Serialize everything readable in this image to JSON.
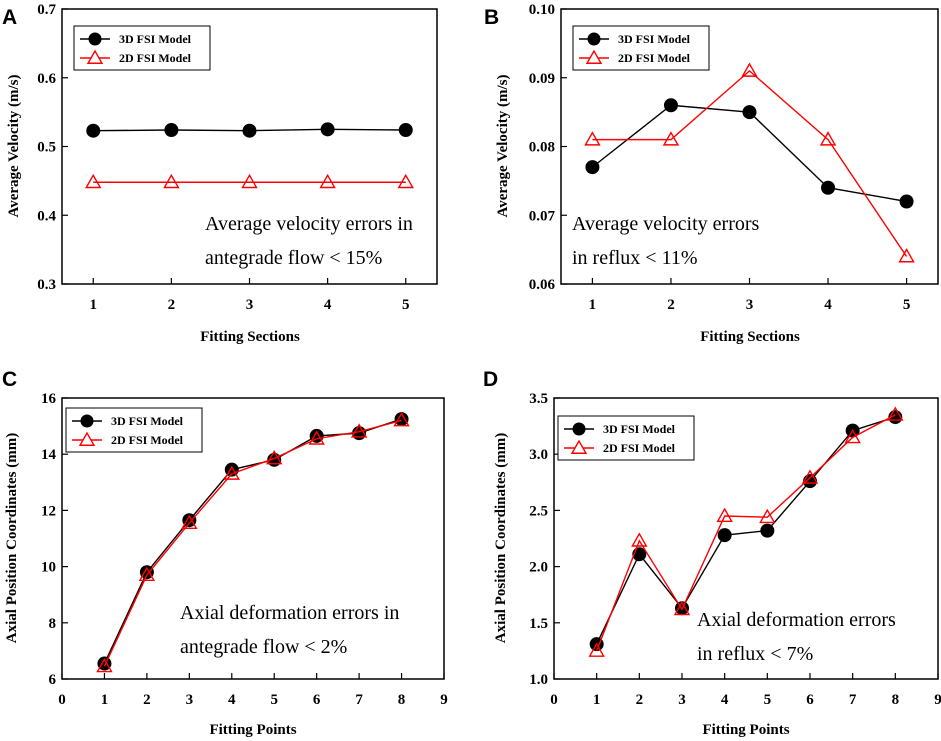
{
  "series_names": [
    "3D FSI Model",
    "2D FSI Model"
  ],
  "colors": {
    "s3d": "#000000",
    "s2d": "#ff0000"
  },
  "chart_data": [
    {
      "panel": "A",
      "type": "line",
      "title": "",
      "xlabel": "Fitting Sections",
      "ylabel": "Average Velocity (m/s)",
      "x": [
        1,
        2,
        3,
        4,
        5
      ],
      "xlim": [
        0.6,
        5.4
      ],
      "xticks": [
        "1",
        "2",
        "3",
        "4",
        "5"
      ],
      "ylim": [
        0.3,
        0.7
      ],
      "yticks": [
        "0.3",
        "0.4",
        "0.5",
        "0.6",
        "0.7"
      ],
      "series": [
        {
          "name": "3D FSI Model",
          "values": [
            0.523,
            0.524,
            0.523,
            0.525,
            0.524
          ]
        },
        {
          "name": "2D FSI Model",
          "values": [
            0.448,
            0.448,
            0.448,
            0.448,
            0.448
          ]
        }
      ],
      "annotation": [
        "Average velocity errors in",
        "antegrade flow < 15%"
      ]
    },
    {
      "panel": "B",
      "type": "line",
      "title": "",
      "xlabel": "Fitting Sections",
      "ylabel": "Average Velocity (m/s)",
      "x": [
        1,
        2,
        3,
        4,
        5
      ],
      "xlim": [
        0.6,
        5.4
      ],
      "xticks": [
        "1",
        "2",
        "3",
        "4",
        "5"
      ],
      "ylim": [
        0.06,
        0.1
      ],
      "yticks": [
        "0.06",
        "0.07",
        "0.08",
        "0.09",
        "0.10"
      ],
      "series": [
        {
          "name": "3D FSI Model",
          "values": [
            0.077,
            0.086,
            0.085,
            0.074,
            0.072
          ]
        },
        {
          "name": "2D FSI Model",
          "values": [
            0.081,
            0.081,
            0.091,
            0.081,
            0.064
          ]
        }
      ],
      "annotation": [
        "Average velocity errors",
        "in reflux < 11%"
      ]
    },
    {
      "panel": "C",
      "type": "line",
      "title": "",
      "xlabel": "Fitting Points",
      "ylabel": "Axial Position Coordinates (mm)",
      "x": [
        1,
        2,
        3,
        4,
        5,
        6,
        7,
        8
      ],
      "xlim": [
        0,
        9
      ],
      "xticks": [
        "0",
        "1",
        "2",
        "3",
        "4",
        "5",
        "6",
        "7",
        "8",
        "9"
      ],
      "ylim": [
        6,
        16
      ],
      "yticks": [
        "6",
        "8",
        "10",
        "12",
        "14",
        "16"
      ],
      "series": [
        {
          "name": "3D FSI Model",
          "values": [
            6.55,
            9.8,
            11.65,
            13.45,
            13.8,
            14.65,
            14.75,
            15.25
          ]
        },
        {
          "name": "2D FSI Model",
          "values": [
            6.45,
            9.7,
            11.55,
            13.3,
            13.85,
            14.55,
            14.8,
            15.2
          ]
        }
      ],
      "annotation": [
        "Axial deformation errors in",
        "antegrade flow  < 2%"
      ]
    },
    {
      "panel": "D",
      "type": "line",
      "title": "",
      "xlabel": "Fitting Points",
      "ylabel": "Axial Position Coordinates (mm)",
      "x": [
        1,
        2,
        3,
        4,
        5,
        6,
        7,
        8
      ],
      "xlim": [
        0,
        9
      ],
      "xticks": [
        "0",
        "1",
        "2",
        "3",
        "4",
        "5",
        "6",
        "7",
        "8",
        "9"
      ],
      "ylim": [
        1,
        3.5
      ],
      "yticks": [
        "1.0",
        "1.5",
        "2.0",
        "2.5",
        "3.0",
        "3.5"
      ],
      "series": [
        {
          "name": "3D FSI Model",
          "values": [
            1.31,
            2.11,
            1.63,
            2.28,
            2.32,
            2.76,
            3.21,
            3.33
          ]
        },
        {
          "name": "2D FSI Model",
          "values": [
            1.25,
            2.23,
            1.62,
            2.45,
            2.44,
            2.79,
            3.15,
            3.35
          ]
        }
      ],
      "annotation": [
        "Axial deformation errors",
        "in reflux < 7%"
      ]
    }
  ]
}
